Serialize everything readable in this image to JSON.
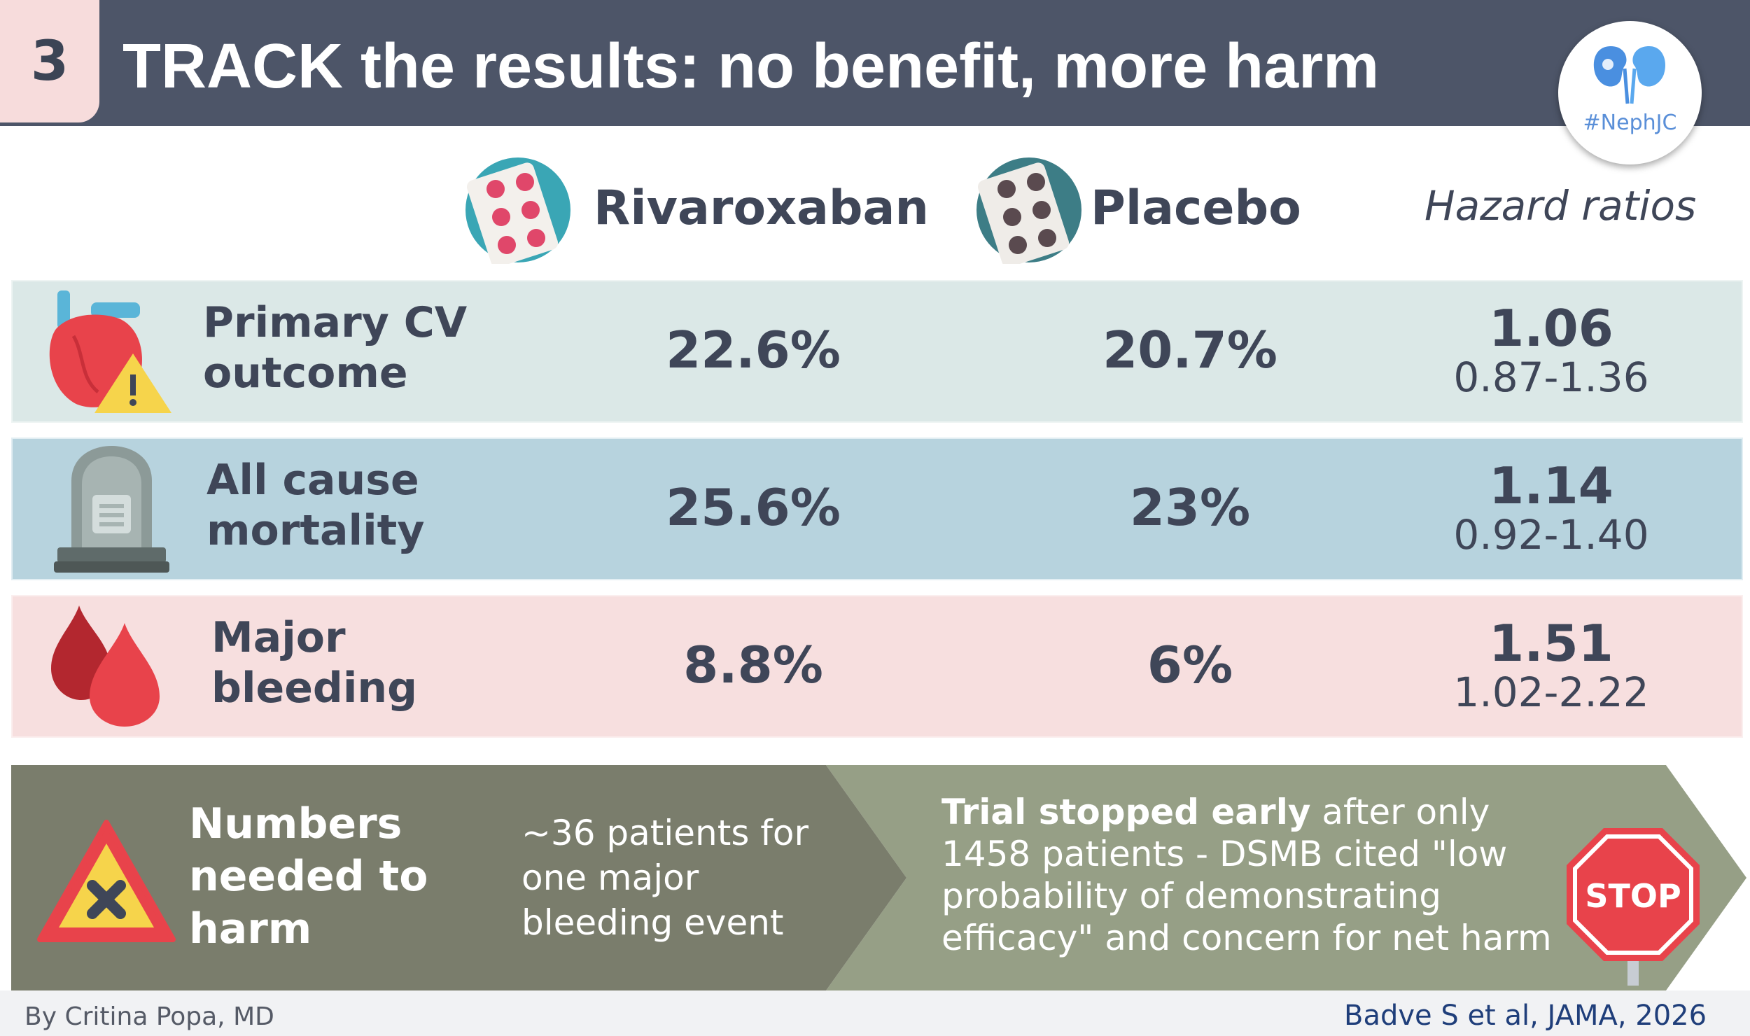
{
  "header": {
    "step": "3",
    "title": "TRACK the results: no benefit, more harm",
    "logo_text": "#NephJC"
  },
  "columns": {
    "arm1": "Rivaroxaban",
    "arm2": "Placebo",
    "hazard": "Hazard ratios"
  },
  "rows": [
    {
      "label_line1": "Primary CV",
      "label_line2": "outcome",
      "arm1": "22.6%",
      "arm2": "20.7%",
      "hr": "1.06",
      "ci": "0.87-1.36",
      "icon": "heart-warning-icon"
    },
    {
      "label_line1": "All cause",
      "label_line2": "mortality",
      "arm1": "25.6%",
      "arm2": "23%",
      "hr": "1.14",
      "ci": "0.92-1.40",
      "icon": "tombstone-icon"
    },
    {
      "label_line1": "Major",
      "label_line2": "bleeding",
      "arm1": "8.8%",
      "arm2": "6%",
      "hr": "1.51",
      "ci": "1.02-2.22",
      "icon": "blood-drops-icon"
    }
  ],
  "banner": {
    "nnh_line1": "Numbers",
    "nnh_line2": "needed to",
    "nnh_line3": "harm",
    "nnh_value_line1": "~36 patients for",
    "nnh_value_line2": "one major",
    "nnh_value_line3": "bleeding event",
    "stop_bold": "Trial stopped early",
    "stop_text": " after only 1458 patients - DSMB cited \"low probability of demonstrating efficacy\" and concern for net harm",
    "stop_sign": "STOP"
  },
  "footer": {
    "author": "By Critina Popa, MD",
    "citation": "Badve S et al, JAMA, 2026"
  },
  "colors": {
    "header_bg": "#4d5568",
    "row1_bg": "#dbe8e7",
    "row2_bg": "#b7d3de",
    "row3_bg": "#f7dfdf",
    "banner_left": "#7a7d6c",
    "banner_right": "#969f86",
    "stop_red": "#e8434b"
  }
}
